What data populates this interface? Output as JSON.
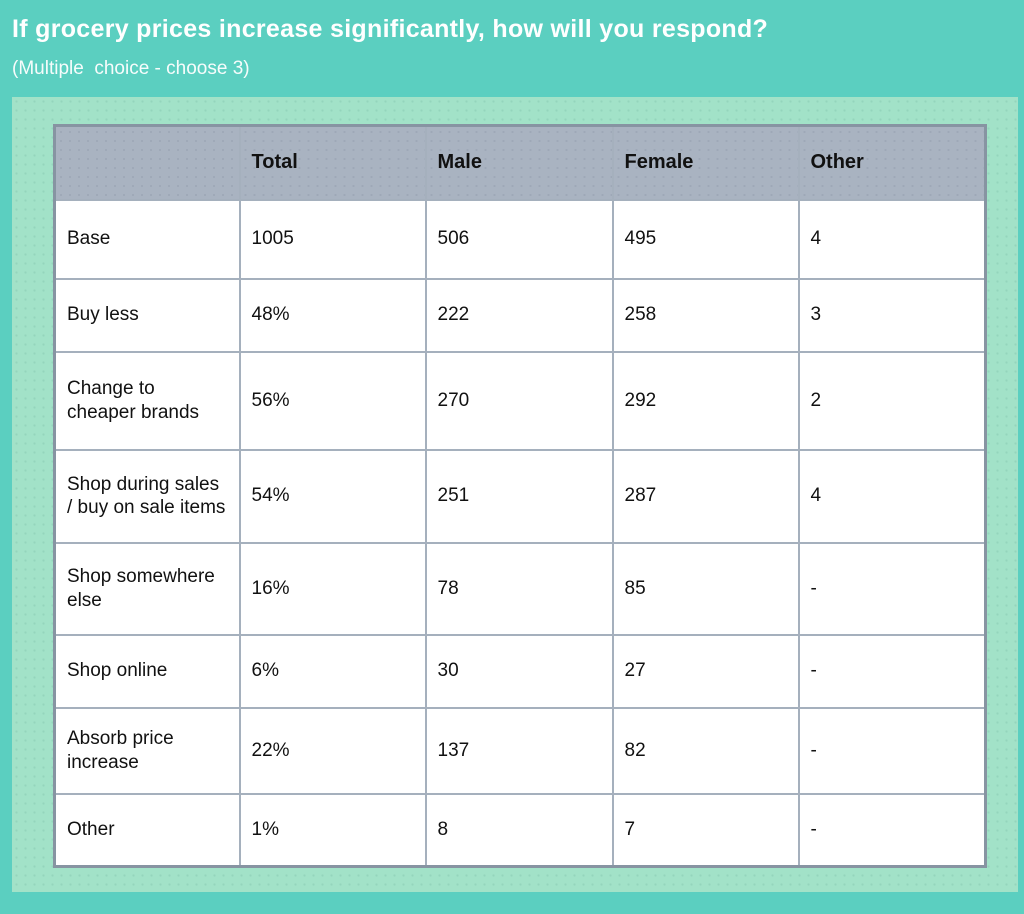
{
  "page": {
    "title": "If grocery prices increase significantly, how will you respond?",
    "subtitle": "(Multiple  choice - choose 3)"
  },
  "colors": {
    "background": "#5BCFC0",
    "panel": "#A2E2C8",
    "header_bg": "#A9B3C1",
    "cell_border": "#A5B0BD",
    "table_outer_border": "#8794A2",
    "title_text": "#FFFFFF",
    "cell_text": "#111111"
  },
  "table": {
    "columns": [
      "",
      "Total",
      "Male",
      "Female",
      "Other"
    ],
    "rows": [
      [
        "Base",
        "1005",
        "506",
        "495",
        "4"
      ],
      [
        "Buy less",
        "48%",
        "222",
        "258",
        "3"
      ],
      [
        "Change to cheaper brands",
        "56%",
        "270",
        "292",
        "2"
      ],
      [
        "Shop during sales / buy on sale items",
        "54%",
        "251",
        "287",
        "4"
      ],
      [
        "Shop somewhere else",
        "16%",
        "78",
        "85",
        "-"
      ],
      [
        "Shop online",
        "6%",
        "30",
        "27",
        "-"
      ],
      [
        "Absorb price increase",
        "22%",
        "137",
        "82",
        "-"
      ],
      [
        "Other",
        "1%",
        "8",
        "7",
        "-"
      ]
    ]
  },
  "chart_data": {
    "type": "table",
    "title": "If grocery prices increase significantly, how will you respond?",
    "subtitle": "(Multiple choice - choose 3)",
    "columns": [
      "",
      "Total",
      "Male",
      "Female",
      "Other"
    ],
    "rows": [
      {
        "label": "Base",
        "total": "1005",
        "male": 506,
        "female": 495,
        "other": 4
      },
      {
        "label": "Buy less",
        "total": "48%",
        "male": 222,
        "female": 258,
        "other": 3
      },
      {
        "label": "Change to cheaper brands",
        "total": "56%",
        "male": 270,
        "female": 292,
        "other": 2
      },
      {
        "label": "Shop during sales / buy on sale items",
        "total": "54%",
        "male": 251,
        "female": 287,
        "other": 4
      },
      {
        "label": "Shop somewhere else",
        "total": "16%",
        "male": 78,
        "female": 85,
        "other": "-"
      },
      {
        "label": "Shop online",
        "total": "6%",
        "male": 30,
        "female": 27,
        "other": "-"
      },
      {
        "label": "Absorb price increase",
        "total": "22%",
        "male": 137,
        "female": 82,
        "other": "-"
      },
      {
        "label": "Other",
        "total": "1%",
        "male": 8,
        "female": 7,
        "other": "-"
      }
    ]
  }
}
